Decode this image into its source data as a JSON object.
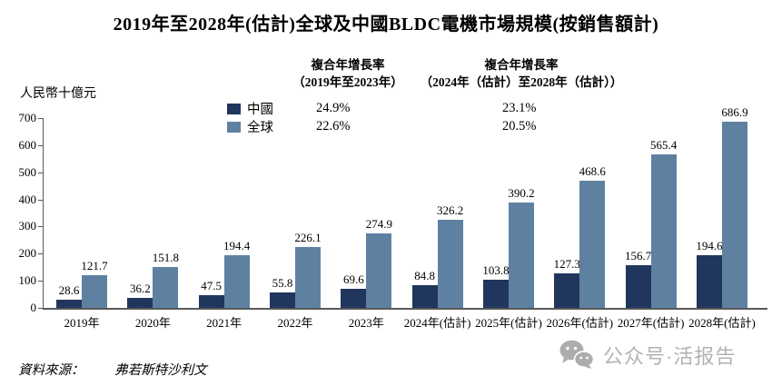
{
  "title": "2019年至2028年(估計)全球及中國BLDC電機市場規模(按銷售額計)",
  "y_axis_title": "人民幣十億元",
  "cagr_table": {
    "col1_header_line1": "複合年增長率",
    "col1_header_line2": "（2019年至2023年）",
    "col2_header_line1": "複合年增長率",
    "col2_header_line2": "（2024年（估計）至2028年（估計））",
    "rows": [
      {
        "label": "中國",
        "period1": "24.9%",
        "period2": "23.1%"
      },
      {
        "label": "全球",
        "period1": "22.6%",
        "period2": "20.5%"
      }
    ]
  },
  "chart_data": {
    "type": "bar",
    "title": "2019年至2028年(估計)全球及中國BLDC電機市場規模(按銷售額計)",
    "ylabel": "人民幣十億元",
    "ylim": [
      0,
      700
    ],
    "yticks": [
      0,
      100,
      200,
      300,
      400,
      500,
      600,
      700
    ],
    "grid": false,
    "legend_position": "top-left",
    "categories": [
      "2019年",
      "2020年",
      "2021年",
      "2022年",
      "2023年",
      "2024年(估計)",
      "2025年(估計)",
      "2026年(估計)",
      "2027年(估計)",
      "2028年(估計)"
    ],
    "series": [
      {
        "name": "中國",
        "color": "#21365c",
        "values": [
          28.6,
          36.2,
          47.5,
          55.8,
          69.6,
          84.8,
          103.8,
          127.3,
          156.7,
          194.6
        ]
      },
      {
        "name": "全球",
        "color": "#5e81a1",
        "values": [
          121.7,
          151.8,
          194.4,
          226.1,
          274.9,
          326.2,
          390.2,
          468.6,
          565.4,
          686.9
        ]
      }
    ]
  },
  "footer": {
    "source_label": "資料來源：",
    "source_value": "弗若斯特沙利文",
    "badge_icon": "wechat-icon",
    "badge_text": "公众号·活报告",
    "badge_color": "#b3b3b3"
  }
}
